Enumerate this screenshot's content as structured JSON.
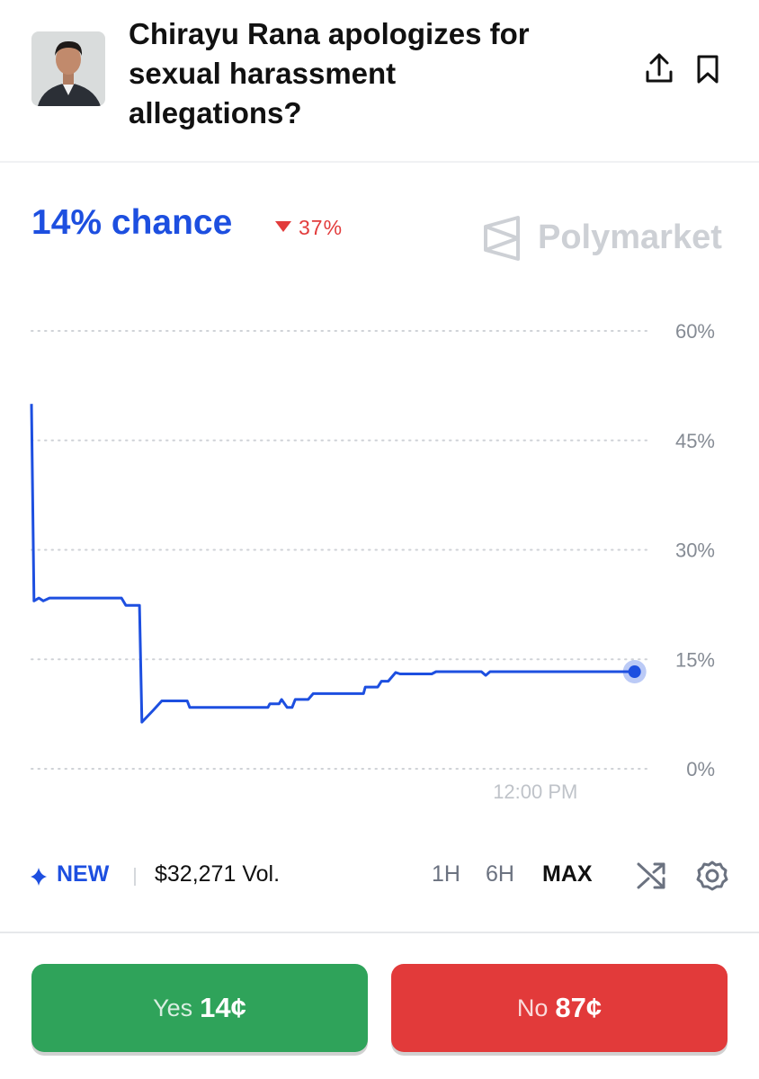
{
  "header": {
    "title": "Chirayu Rana apologizes for sexual harassment allegations?"
  },
  "summary": {
    "chance": "14% chance",
    "change": "37%",
    "brand": "Polymarket"
  },
  "chart_data": {
    "type": "line",
    "color": "#1d4fe0",
    "x": [
      0,
      0.4,
      1.2,
      1.9,
      2.9,
      14.5,
      15.2,
      17.4,
      17.8,
      19.6,
      21.0,
      25.1,
      25.5,
      38.1,
      38.4,
      39.9,
      40.3,
      41.2,
      42.0,
      42.5,
      44.6,
      45.4,
      53.5,
      53.8,
      55.8,
      56.4,
      57.5,
      58.7,
      59.4,
      64.5,
      65.2,
      72.5,
      73.2,
      73.9,
      97.2
    ],
    "values": [
      50,
      23,
      23.4,
      23,
      23.4,
      23.4,
      22.4,
      22.4,
      6.4,
      8,
      9.3,
      9.3,
      8.4,
      8.4,
      8.9,
      8.9,
      9.5,
      8.4,
      8.4,
      9.5,
      9.5,
      10.3,
      10.3,
      11.2,
      11.2,
      12,
      12,
      13.2,
      13,
      13,
      13.3,
      13.3,
      12.8,
      13.3,
      13.3
    ],
    "xlim": [
      0,
      100
    ],
    "xticks": [
      {
        "value": 81.2,
        "label": "12:00 PM"
      }
    ],
    "ylim": [
      0,
      60
    ],
    "yticks": [
      {
        "value": 0,
        "label": "0%"
      },
      {
        "value": 15,
        "label": "15%"
      },
      {
        "value": 30,
        "label": "30%"
      },
      {
        "value": 45,
        "label": "45%"
      },
      {
        "value": 60,
        "label": "60%"
      }
    ],
    "grid": true
  },
  "footer": {
    "badge": "NEW",
    "volume": "$32,271 Vol.",
    "ranges": [
      "1H",
      "6H",
      "MAX"
    ],
    "active_range": 2
  },
  "buttons": {
    "yes_label": "Yes",
    "yes_price": "14¢",
    "no_label": "No",
    "no_price": "87¢"
  }
}
